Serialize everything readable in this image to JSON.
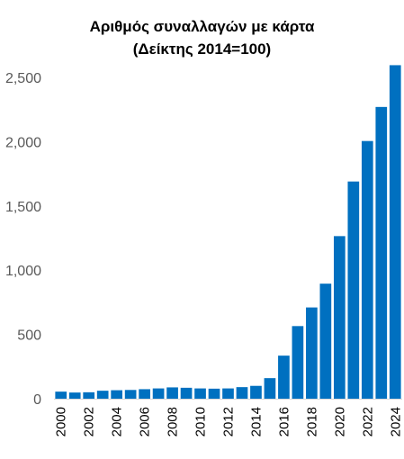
{
  "chart_data": {
    "type": "bar",
    "title": "Αριθμός συναλλαγών με κάρτα",
    "subtitle": "(Δείκτης 2014=100)",
    "xlabel": "",
    "ylabel": "",
    "ylim": [
      0,
      2600
    ],
    "yticks": [
      0,
      500,
      1000,
      1500,
      2000,
      2500
    ],
    "ytick_labels": [
      "0",
      "500",
      "1,000",
      "1,500",
      "2,000",
      "2,500"
    ],
    "categories": [
      "2000",
      "2001",
      "2002",
      "2003",
      "2004",
      "2005",
      "2006",
      "2007",
      "2008",
      "2009",
      "2010",
      "2011",
      "2012",
      "2013",
      "2014",
      "2015",
      "2016",
      "2017",
      "2018",
      "2019",
      "2020",
      "2021",
      "2022",
      "2023",
      "2024"
    ],
    "xtick_labels": [
      "2000",
      "",
      "2002",
      "",
      "2004",
      "",
      "2006",
      "",
      "2008",
      "",
      "2010",
      "",
      "2012",
      "",
      "2014",
      "",
      "2016",
      "",
      "2018",
      "",
      "2020",
      "",
      "2022",
      "",
      "2024"
    ],
    "values": [
      55,
      48,
      50,
      62,
      66,
      68,
      74,
      80,
      88,
      85,
      80,
      78,
      80,
      90,
      100,
      160,
      335,
      565,
      710,
      895,
      1265,
      1690,
      2005,
      2270,
      2595
    ],
    "bar_color": "#0070C0",
    "grid": false,
    "legend": "none"
  }
}
